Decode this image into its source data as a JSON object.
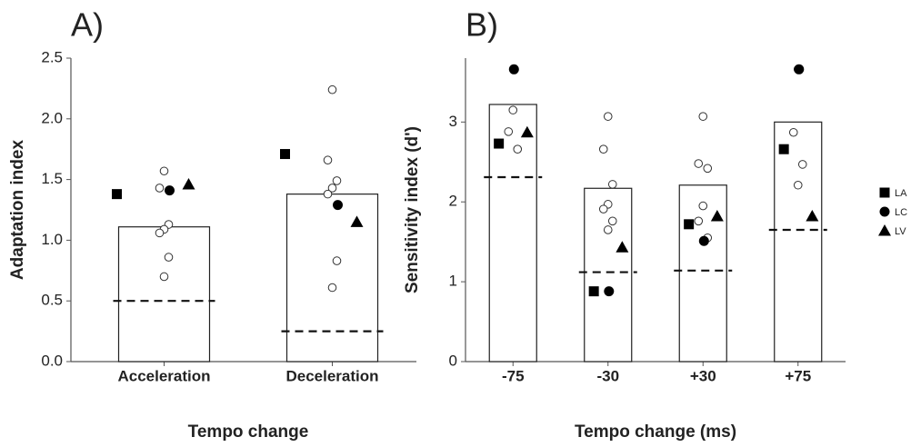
{
  "chart_data": [
    {
      "type": "bar",
      "title": "A)",
      "y_label": "Adaptation index",
      "x_label": "Tempo change",
      "categories": [
        "Acceleration",
        "Deceleration"
      ],
      "values": [
        1.11,
        1.38
      ],
      "dashed_values": [
        0.5,
        0.25
      ],
      "points": [
        [
          1.57,
          1.43,
          1.13,
          1.09,
          1.06,
          0.86,
          0.7
        ],
        [
          2.24,
          1.66,
          1.49,
          1.43,
          1.38,
          0.83,
          0.61
        ]
      ],
      "series": [
        {
          "name": "LA",
          "marker": "square",
          "color": "#000000",
          "values": [
            1.38,
            1.71
          ]
        },
        {
          "name": "LC",
          "marker": "circle",
          "color": "#000000",
          "values": [
            1.41,
            1.29
          ]
        },
        {
          "name": "LV",
          "marker": "triangle",
          "color": "#000000",
          "values": [
            1.46,
            1.15
          ]
        }
      ],
      "ylim": [
        0,
        2.5
      ],
      "yticks": [
        {
          "value": 0,
          "label": "0.0"
        },
        0.5,
        {
          "value": 1,
          "label": "1.0"
        },
        1.5,
        {
          "value": 2,
          "label": "2.0"
        },
        2.5
      ],
      "legend": false
    },
    {
      "type": "bar",
      "title": "B)",
      "y_label": "Sensitivity index (d')",
      "x_label": "Tempo change (ms)",
      "categories": [
        "-75",
        "-30",
        "+30",
        "+75"
      ],
      "values": [
        3.22,
        2.17,
        2.21,
        3.0
      ],
      "dashed_values": [
        2.31,
        1.12,
        1.14,
        1.65
      ],
      "points": [
        [
          3.15,
          2.88,
          2.66
        ],
        [
          3.07,
          2.66,
          2.22,
          1.97,
          1.91,
          1.76,
          1.65
        ],
        [
          3.07,
          2.48,
          2.42,
          1.95,
          1.76,
          1.55
        ],
        [
          3.66,
          2.87,
          2.47,
          2.21
        ]
      ],
      "series": [
        {
          "name": "LA",
          "marker": "square",
          "color": "#000000",
          "values": [
            2.73,
            0.88,
            1.72,
            2.66
          ]
        },
        {
          "name": "LC",
          "marker": "circle",
          "color": "#000000",
          "values": [
            3.66,
            0.88,
            1.51,
            3.66
          ]
        },
        {
          "name": "LV",
          "marker": "triangle",
          "color": "#000000",
          "values": [
            2.87,
            1.43,
            1.82,
            1.82
          ]
        }
      ],
      "ylim": [
        0,
        3.8
      ],
      "yticks": [
        0,
        1,
        2,
        3
      ],
      "legend": true,
      "legend_position": "right"
    }
  ]
}
